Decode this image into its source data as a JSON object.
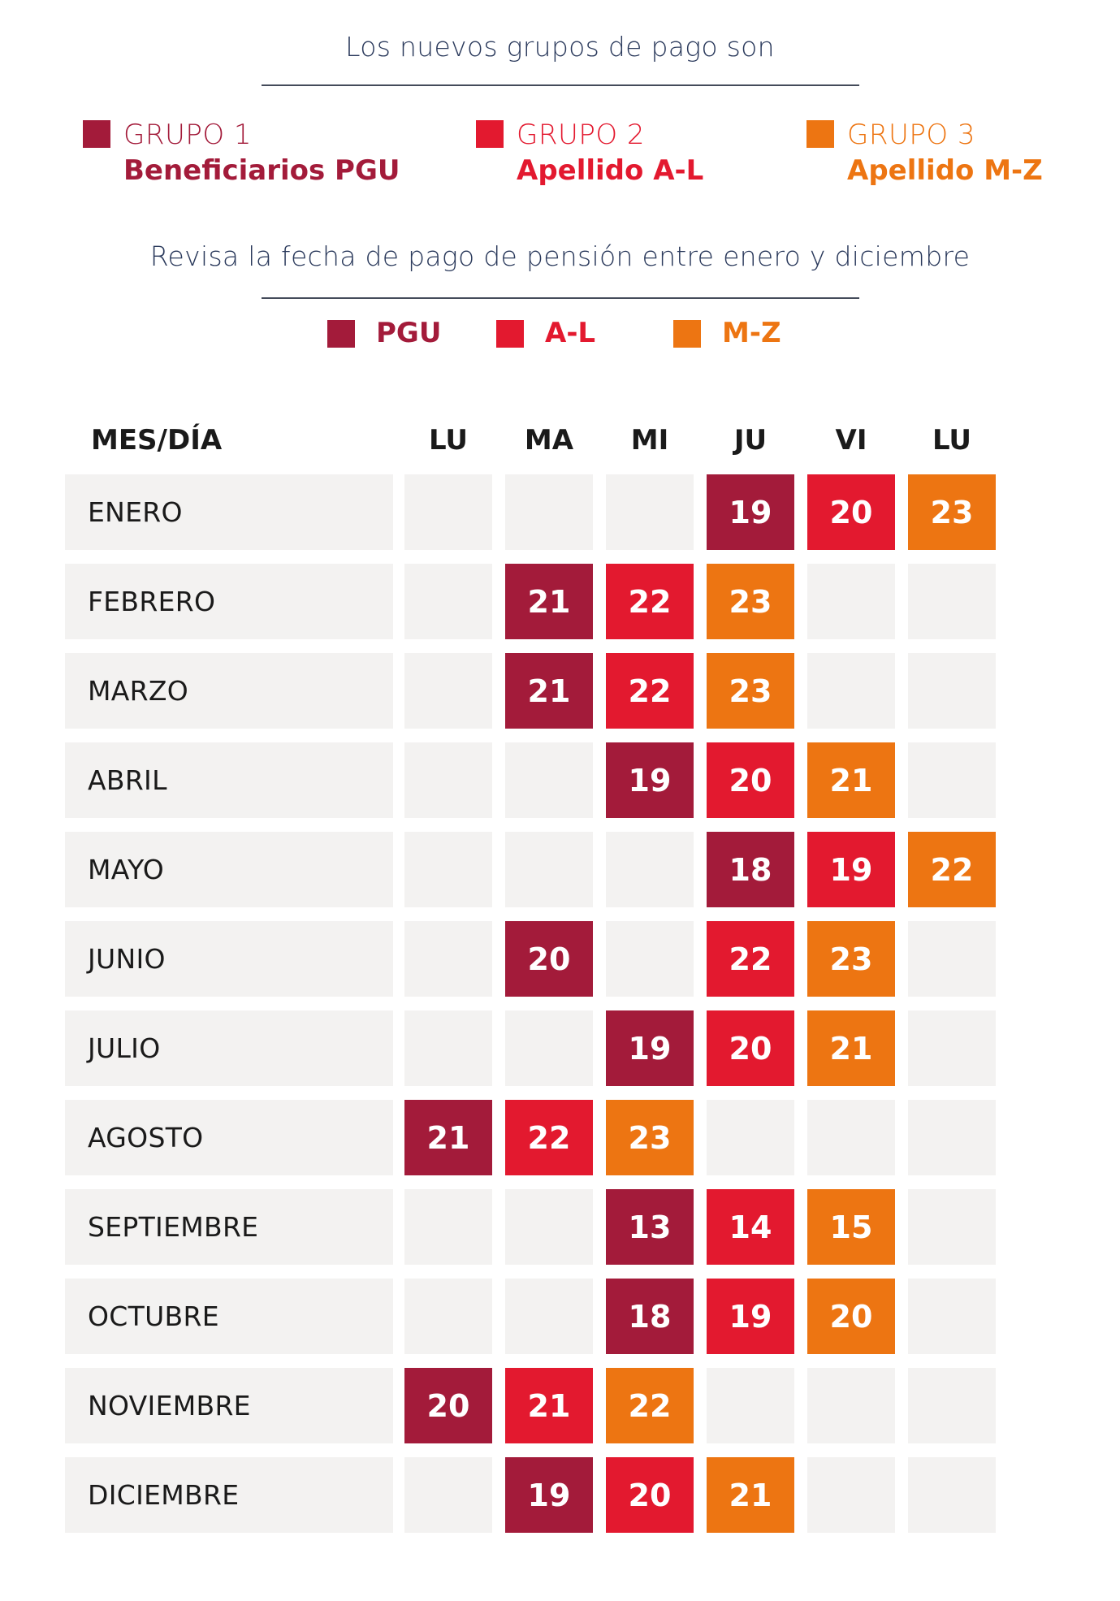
{
  "heading1": "Los nuevos grupos de pago son",
  "groups": [
    {
      "name": "GRUPO 1",
      "desc": "Beneficiarios PGU",
      "color": "#a31b3a"
    },
    {
      "name": "GRUPO 2",
      "desc": "Apellido A-L",
      "color": "#e3192f"
    },
    {
      "name": "GRUPO 3",
      "desc": "Apellido M-Z",
      "color": "#ed7512"
    }
  ],
  "heading2": "Revisa la fecha de pago de pensión entre enero y diciembre",
  "legend": [
    {
      "label": "PGU",
      "color": "#a31b3a"
    },
    {
      "label": "A-L",
      "color": "#e3192f"
    },
    {
      "label": "M-Z",
      "color": "#ed7512"
    }
  ],
  "table": {
    "corner_header": "MES/DÍA",
    "day_headers": [
      "LU",
      "MA",
      "MI",
      "JU",
      "VI",
      "LU"
    ],
    "rows": [
      {
        "month": "ENERO",
        "cells": [
          null,
          null,
          null,
          {
            "day": "19",
            "group": "PGU"
          },
          {
            "day": "20",
            "group": "A-L"
          },
          {
            "day": "23",
            "group": "M-Z"
          }
        ]
      },
      {
        "month": "FEBRERO",
        "cells": [
          null,
          {
            "day": "21",
            "group": "PGU"
          },
          {
            "day": "22",
            "group": "A-L"
          },
          {
            "day": "23",
            "group": "M-Z"
          },
          null,
          null
        ]
      },
      {
        "month": "MARZO",
        "cells": [
          null,
          {
            "day": "21",
            "group": "PGU"
          },
          {
            "day": "22",
            "group": "A-L"
          },
          {
            "day": "23",
            "group": "M-Z"
          },
          null,
          null
        ]
      },
      {
        "month": "ABRIL",
        "cells": [
          null,
          null,
          {
            "day": "19",
            "group": "PGU"
          },
          {
            "day": "20",
            "group": "A-L"
          },
          {
            "day": "21",
            "group": "M-Z"
          },
          null
        ]
      },
      {
        "month": "MAYO",
        "cells": [
          null,
          null,
          null,
          {
            "day": "18",
            "group": "PGU"
          },
          {
            "day": "19",
            "group": "A-L"
          },
          {
            "day": "22",
            "group": "M-Z"
          }
        ]
      },
      {
        "month": "JUNIO",
        "cells": [
          null,
          {
            "day": "20",
            "group": "PGU"
          },
          null,
          {
            "day": "22",
            "group": "A-L"
          },
          {
            "day": "23",
            "group": "M-Z"
          },
          null
        ]
      },
      {
        "month": "JULIO",
        "cells": [
          null,
          null,
          {
            "day": "19",
            "group": "PGU"
          },
          {
            "day": "20",
            "group": "A-L"
          },
          {
            "day": "21",
            "group": "M-Z"
          },
          null
        ]
      },
      {
        "month": "AGOSTO",
        "cells": [
          {
            "day": "21",
            "group": "PGU"
          },
          {
            "day": "22",
            "group": "A-L"
          },
          {
            "day": "23",
            "group": "M-Z"
          },
          null,
          null,
          null
        ]
      },
      {
        "month": "SEPTIEMBRE",
        "cells": [
          null,
          null,
          {
            "day": "13",
            "group": "PGU"
          },
          {
            "day": "14",
            "group": "A-L"
          },
          {
            "day": "15",
            "group": "M-Z"
          },
          null
        ]
      },
      {
        "month": "OCTUBRE",
        "cells": [
          null,
          null,
          {
            "day": "18",
            "group": "PGU"
          },
          {
            "day": "19",
            "group": "A-L"
          },
          {
            "day": "20",
            "group": "M-Z"
          },
          null
        ]
      },
      {
        "month": "NOVIEMBRE",
        "cells": [
          {
            "day": "20",
            "group": "PGU"
          },
          {
            "day": "21",
            "group": "A-L"
          },
          {
            "day": "22",
            "group": "M-Z"
          },
          null,
          null,
          null
        ]
      },
      {
        "month": "DICIEMBRE",
        "cells": [
          null,
          {
            "day": "19",
            "group": "PGU"
          },
          {
            "day": "20",
            "group": "A-L"
          },
          {
            "day": "21",
            "group": "M-Z"
          },
          null,
          null
        ]
      }
    ]
  },
  "colors": {
    "empty_cell": "#f3f2f1",
    "text_dark": "#1a1a1a",
    "heading": "#2b3a5c"
  }
}
